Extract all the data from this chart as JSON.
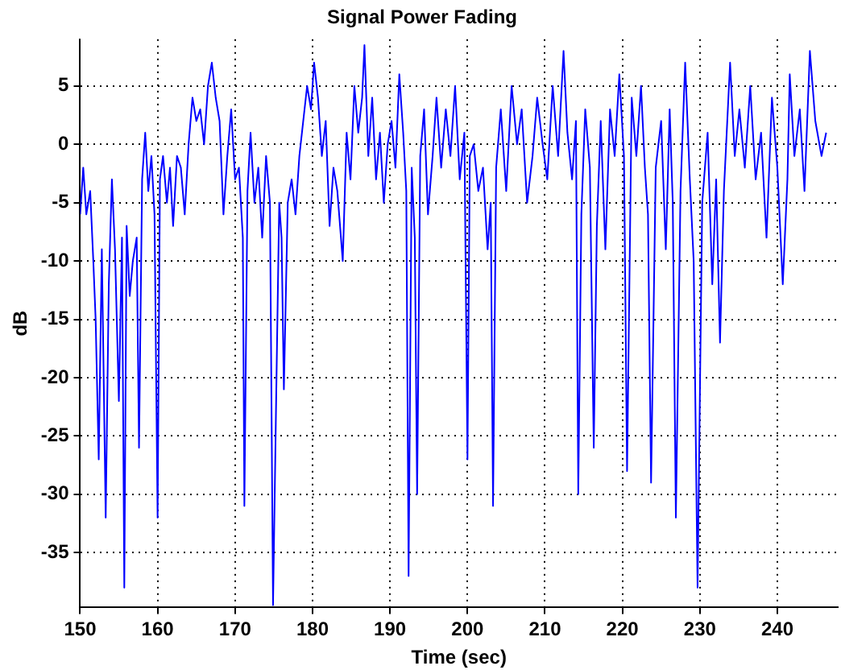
{
  "chart_data": {
    "type": "line",
    "title": "Signal Power Fading",
    "xlabel": "Time (sec)",
    "ylabel": "dB",
    "xlim": [
      150,
      247.8
    ],
    "xticks": [
      150,
      160,
      170,
      180,
      190,
      200,
      210,
      220,
      230,
      240
    ],
    "ylim": [
      -39.7,
      9
    ],
    "yticks": [
      -35,
      -30,
      -25,
      -20,
      -15,
      -10,
      -5,
      0,
      5
    ],
    "grid": true,
    "legend": false,
    "marker": "none",
    "line_style": "solid",
    "series": [
      {
        "color": "#0000ff",
        "x": [
          150,
          150.4,
          150.8,
          151.3,
          151.7,
          152,
          152.4,
          152.8,
          153.3,
          153.7,
          154.1,
          154.5,
          155,
          155.4,
          155.7,
          156,
          156.4,
          156.8,
          157.3,
          157.6,
          158,
          158.4,
          158.8,
          159.2,
          159.6,
          160,
          160.3,
          160.7,
          161.2,
          161.6,
          162,
          162.5,
          163,
          163.5,
          164,
          164.5,
          165,
          165.5,
          166,
          166.5,
          167,
          167.5,
          168,
          168.5,
          169,
          169.5,
          170,
          170.5,
          171,
          171.2,
          171.6,
          172,
          172.5,
          173,
          173.5,
          174,
          174.5,
          174.9,
          175.3,
          175.7,
          176,
          176.3,
          176.8,
          177.3,
          177.8,
          178.3,
          178.8,
          179.3,
          179.8,
          180.2,
          180.7,
          181.2,
          181.7,
          182.2,
          182.7,
          183.2,
          183.9,
          184.4,
          184.9,
          185.4,
          185.9,
          186.4,
          186.7,
          187.2,
          187.7,
          188.2,
          188.7,
          189.2,
          189.7,
          190.2,
          190.7,
          191.2,
          191.7,
          192.1,
          192.4,
          192.8,
          193.2,
          193.5,
          193.9,
          194.4,
          194.9,
          195.5,
          196,
          196.6,
          197.2,
          197.8,
          198.4,
          199,
          199.6,
          200,
          200.3,
          200.8,
          201.4,
          202,
          202.6,
          203,
          203.3,
          203.7,
          204.3,
          205,
          205.7,
          206.4,
          207,
          207.7,
          208.4,
          209,
          209.7,
          210.3,
          211,
          211.7,
          212.4,
          212.9,
          213.5,
          214,
          214.3,
          214.7,
          215.2,
          215.8,
          216.3,
          216.7,
          217.2,
          217.8,
          218.4,
          219,
          219.6,
          220.2,
          220.6,
          221.2,
          221.8,
          222.4,
          222.9,
          223.3,
          223.7,
          224.3,
          225,
          225.6,
          226.1,
          226.5,
          226.9,
          227.5,
          228.1,
          228.7,
          229.2,
          229.7,
          230.3,
          231,
          231.6,
          232.1,
          232.6,
          233.1,
          233.9,
          234.5,
          235.1,
          235.8,
          236.5,
          237.2,
          237.9,
          238.6,
          239.3,
          240,
          240.7,
          241.3,
          241.6,
          242.2,
          242.9,
          243.5,
          244.2,
          244.9,
          245.7,
          246.3
        ],
        "values": [
          -6,
          -2,
          -6,
          -4,
          -10,
          -15,
          -27,
          -9,
          -32,
          -12,
          -3,
          -9,
          -22,
          -8,
          -38,
          -7,
          -13,
          -10,
          -8,
          -26,
          -3,
          1,
          -4,
          -1,
          -6,
          -32,
          -3,
          -1,
          -5,
          -2,
          -7,
          -1,
          -2,
          -6,
          0,
          4,
          2,
          3,
          0,
          5,
          7,
          4,
          2,
          -6,
          -1,
          3,
          -3,
          -2,
          -8,
          -31,
          -4,
          1,
          -5,
          -2,
          -8,
          -1,
          -5,
          -39.5,
          -22,
          -5,
          -8,
          -21,
          -5,
          -3,
          -6,
          -1,
          2,
          5,
          3,
          7,
          4,
          -1,
          2,
          -7,
          -2,
          -4,
          -10,
          1,
          -3,
          5,
          1,
          4,
          8.5,
          -1,
          4,
          -3,
          1,
          -5,
          0,
          2,
          -2,
          6,
          1,
          -4,
          -37,
          -2,
          -8,
          -30,
          -1,
          3,
          -6,
          -1,
          4,
          -2,
          3,
          -1,
          5,
          -3,
          1,
          -27,
          -1,
          0,
          -4,
          -2,
          -9,
          -5,
          -31,
          -2,
          3,
          -4,
          5,
          0,
          3,
          -5,
          -1,
          4,
          0,
          -3,
          5,
          -1,
          8,
          1,
          -3,
          2,
          -30,
          -6,
          3,
          -2,
          -26,
          -7,
          2,
          -9,
          3,
          -1,
          6,
          -1,
          -28,
          4,
          -1,
          5,
          -2,
          -6,
          -29,
          -2,
          2,
          -9,
          3,
          -5,
          -32,
          -4,
          7,
          -3,
          -10,
          -38,
          -5,
          1,
          -12,
          -3,
          -17,
          -4,
          7,
          -1,
          3,
          -2,
          5,
          -3,
          1,
          -8,
          4,
          -2,
          -12,
          -3,
          6,
          -1,
          3,
          -4,
          8,
          2,
          -1,
          1
        ]
      }
    ]
  }
}
